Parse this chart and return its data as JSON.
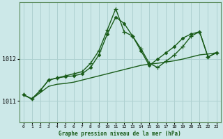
{
  "xlabel": "Graphe pression niveau de la mer (hPa)",
  "background_color": "#cce8e8",
  "grid_color": "#aed0d0",
  "line_color": "#1a5c1a",
  "border_color": "#5a8a5a",
  "ylim": [
    1010.5,
    1013.35
  ],
  "xlim": [
    -0.5,
    23.5
  ],
  "yticks": [
    1011,
    1012
  ],
  "xticks": [
    0,
    1,
    2,
    3,
    4,
    5,
    6,
    7,
    8,
    9,
    10,
    11,
    12,
    13,
    14,
    15,
    16,
    17,
    18,
    19,
    20,
    21,
    22,
    23
  ],
  "lines": [
    {
      "x": [
        0,
        1,
        2,
        3,
        4,
        5,
        6,
        7,
        8,
        9,
        10,
        11,
        12,
        13,
        14,
        15,
        16,
        17,
        18,
        19,
        20,
        21,
        22,
        23
      ],
      "y": [
        1011.15,
        1011.05,
        1011.2,
        1011.35,
        1011.4,
        1011.42,
        1011.45,
        1011.5,
        1011.55,
        1011.6,
        1011.65,
        1011.7,
        1011.75,
        1011.8,
        1011.85,
        1011.88,
        1011.9,
        1011.93,
        1011.96,
        1012.0,
        1012.05,
        1012.1,
        1012.12,
        1012.15
      ],
      "marker": null,
      "lw": 1.0
    },
    {
      "x": [
        0,
        1,
        2,
        3,
        4,
        5,
        6,
        7,
        8,
        9,
        10,
        11,
        12,
        13,
        14,
        15,
        16,
        17,
        18,
        19,
        20,
        21,
        22,
        23
      ],
      "y": [
        1011.15,
        1011.05,
        1011.25,
        1011.5,
        1011.55,
        1011.6,
        1011.65,
        1011.7,
        1011.9,
        1012.2,
        1012.7,
        1013.2,
        1012.65,
        1012.55,
        1012.25,
        1011.9,
        1011.8,
        1011.95,
        1012.1,
        1012.3,
        1012.55,
        1012.65,
        1012.05,
        1012.15
      ],
      "marker": "+",
      "lw": 1.0
    },
    {
      "x": [
        0,
        1,
        2,
        3,
        4,
        5,
        6,
        7,
        8,
        9,
        10,
        11,
        12,
        13,
        14,
        15,
        16,
        17,
        18,
        19,
        20,
        21,
        22,
        23
      ],
      "y": [
        1011.15,
        1011.05,
        1011.25,
        1011.5,
        1011.55,
        1011.58,
        1011.6,
        1011.65,
        1011.8,
        1012.1,
        1012.6,
        1013.0,
        1012.85,
        1012.55,
        1012.2,
        1011.85,
        1012.0,
        1012.15,
        1012.3,
        1012.5,
        1012.6,
        1012.65,
        1012.05,
        1012.15
      ],
      "marker": "D",
      "lw": 1.0
    }
  ]
}
